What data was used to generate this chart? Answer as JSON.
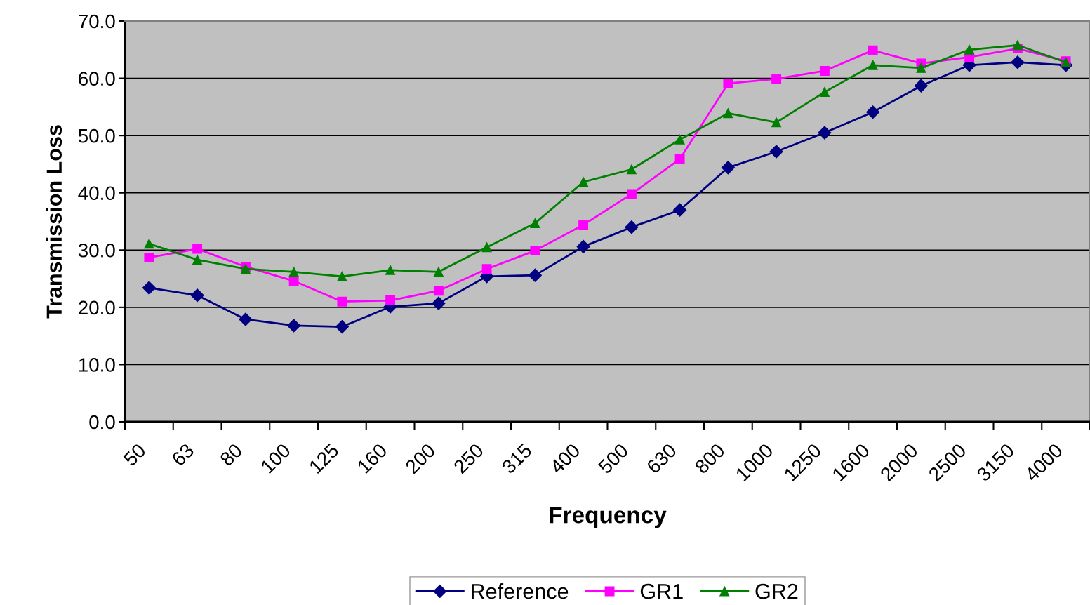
{
  "chart_data": {
    "type": "line",
    "xlabel": "Frequency",
    "ylabel": "Transmission Loss",
    "categories": [
      "50",
      "63",
      "80",
      "100",
      "125",
      "160",
      "200",
      "250",
      "315",
      "400",
      "500",
      "630",
      "800",
      "1000",
      "1250",
      "1600",
      "2000",
      "2500",
      "3150",
      "4000"
    ],
    "series": [
      {
        "name": "Reference",
        "color": "#000080",
        "marker": "diamond",
        "values": [
          23.4,
          22.1,
          17.9,
          16.8,
          16.6,
          20.1,
          20.7,
          25.4,
          25.6,
          30.6,
          34.0,
          37.0,
          44.4,
          47.2,
          50.5,
          54.1,
          58.7,
          62.3,
          62.8,
          62.3
        ]
      },
      {
        "name": "GR1",
        "color": "#ff00ff",
        "marker": "square",
        "values": [
          28.7,
          30.2,
          27.1,
          24.6,
          21.0,
          21.2,
          22.9,
          26.7,
          29.9,
          34.4,
          39.8,
          45.9,
          59.1,
          59.9,
          61.3,
          64.9,
          62.6,
          63.7,
          65.2,
          63.0
        ]
      },
      {
        "name": "GR2",
        "color": "#008000",
        "marker": "triangle",
        "values": [
          31.1,
          28.3,
          26.7,
          26.2,
          25.4,
          26.5,
          26.2,
          30.5,
          34.7,
          41.9,
          44.1,
          49.3,
          53.9,
          52.3,
          57.6,
          62.3,
          61.8,
          65.0,
          65.8,
          62.8
        ]
      }
    ],
    "ylim": [
      0,
      70
    ],
    "yticks": [
      {
        "value": 0,
        "label": "0.0"
      },
      {
        "value": 10,
        "label": "10.0"
      },
      {
        "value": 20,
        "label": "20.0"
      },
      {
        "value": 30,
        "label": "30.0"
      },
      {
        "value": 40,
        "label": "40.0"
      },
      {
        "value": 50,
        "label": "50.0"
      },
      {
        "value": 60,
        "label": "60.0"
      },
      {
        "value": 70,
        "label": "70.0"
      }
    ],
    "grid": "y",
    "legend": "bottom",
    "line_style": "solid"
  }
}
